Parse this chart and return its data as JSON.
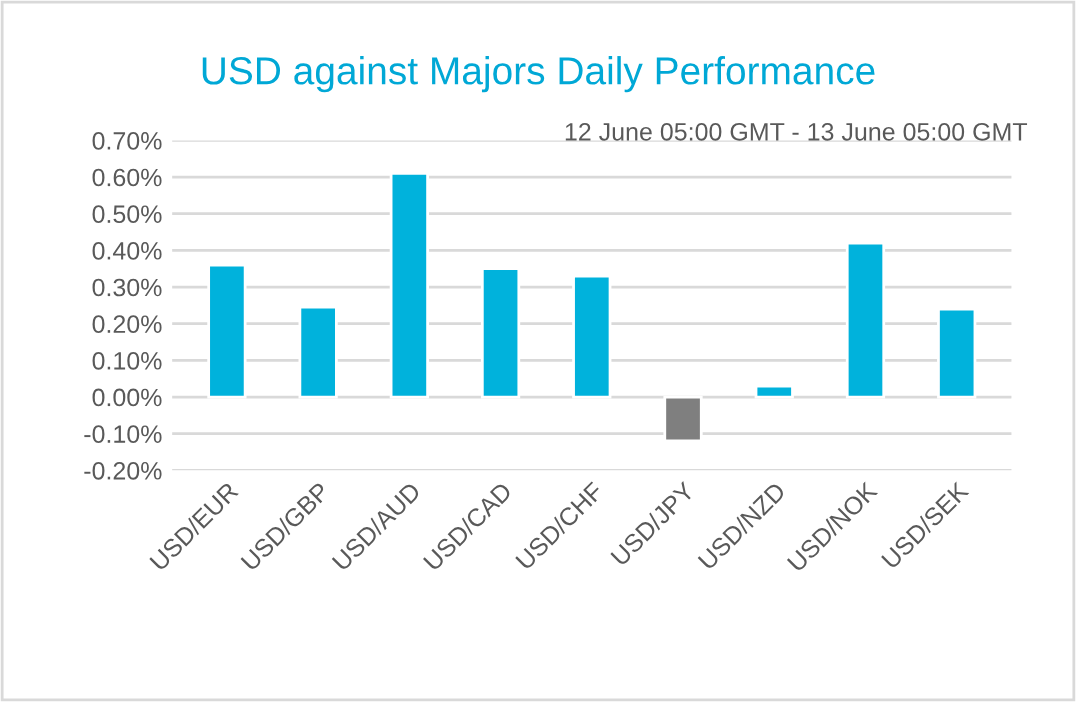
{
  "chart_data": {
    "type": "bar",
    "title": "USD against Majors Daily Performance",
    "subtitle": "12 June 05:00 GMT - 13 June 05:00 GMT",
    "categories": [
      "USD/EUR",
      "USD/GBP",
      "USD/AUD",
      "USD/CAD",
      "USD/CHF",
      "USD/JPY",
      "USD/NZD",
      "USD/NOK",
      "USD/SEK"
    ],
    "values": [
      0.36,
      0.245,
      0.61,
      0.35,
      0.33,
      -0.12,
      0.03,
      0.42,
      0.24
    ],
    "colors": [
      "#00b2dc",
      "#00b2dc",
      "#00b2dc",
      "#00b2dc",
      "#00b2dc",
      "#7f7f7f",
      "#00b2dc",
      "#00b2dc",
      "#00b2dc"
    ],
    "ylim": [
      -0.2,
      0.7
    ],
    "yticks": [
      {
        "value": -0.2,
        "label": "-0.20%"
      },
      {
        "value": -0.1,
        "label": "-0.10%"
      },
      {
        "value": 0,
        "label": "0.00%"
      },
      {
        "value": 0.1,
        "label": "0.10%"
      },
      {
        "value": 0.2,
        "label": "0.20%"
      },
      {
        "value": 0.3,
        "label": "0.30%"
      },
      {
        "value": 0.4,
        "label": "0.40%"
      },
      {
        "value": 0.5,
        "label": "0.50%"
      },
      {
        "value": 0.6,
        "label": "0.60%"
      },
      {
        "value": 0.7,
        "label": "0.70%"
      }
    ],
    "grid": "y",
    "legend": false
  }
}
